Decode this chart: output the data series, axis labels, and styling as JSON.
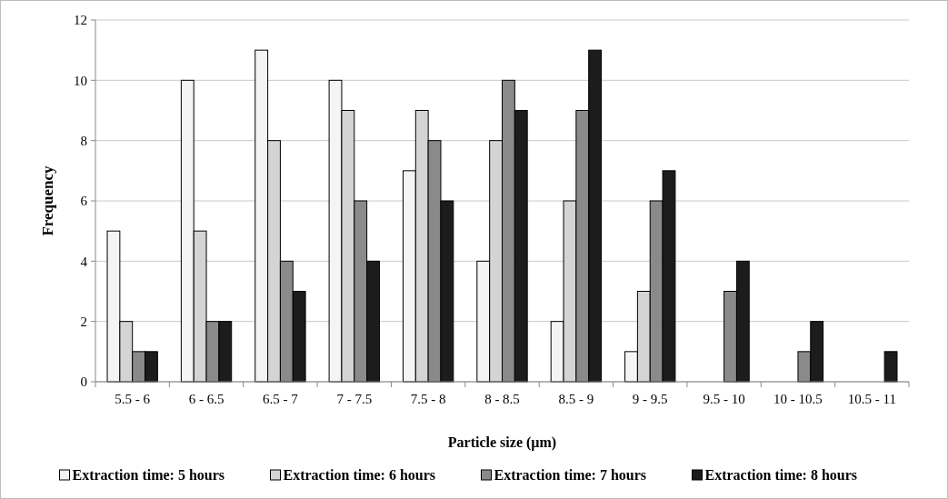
{
  "chart_data": {
    "type": "bar",
    "xlabel": "Particle size (µm)",
    "ylabel": "Frequency",
    "categories": [
      "5.5 - 6",
      "6 - 6.5",
      "6.5 - 7",
      "7 - 7.5",
      "7.5 - 8",
      "8 - 8.5",
      "8.5 - 9",
      "9 - 9.5",
      "9.5 - 10",
      "10 - 10.5",
      "10.5 - 11"
    ],
    "series": [
      {
        "name": "Extraction time: 5 hours",
        "color": "#f4f4f4",
        "values": [
          5,
          10,
          11,
          10,
          7,
          4,
          2,
          1,
          0,
          0,
          0
        ]
      },
      {
        "name": "Extraction time: 6 hours",
        "color": "#d4d4d4",
        "values": [
          2,
          5,
          8,
          9,
          9,
          8,
          6,
          3,
          0,
          0,
          0
        ]
      },
      {
        "name": "Extraction time: 7 hours",
        "color": "#8a8a8a",
        "values": [
          1,
          2,
          4,
          6,
          8,
          10,
          9,
          6,
          3,
          1,
          0
        ]
      },
      {
        "name": "Extraction time: 8 hours",
        "color": "#1c1c1c",
        "values": [
          1,
          2,
          3,
          4,
          6,
          9,
          11,
          7,
          4,
          2,
          1
        ]
      }
    ],
    "ylim": [
      0,
      12
    ],
    "yticks": [
      0,
      2,
      4,
      6,
      8,
      10,
      12
    ],
    "grid": "y",
    "legend": "bottom"
  }
}
